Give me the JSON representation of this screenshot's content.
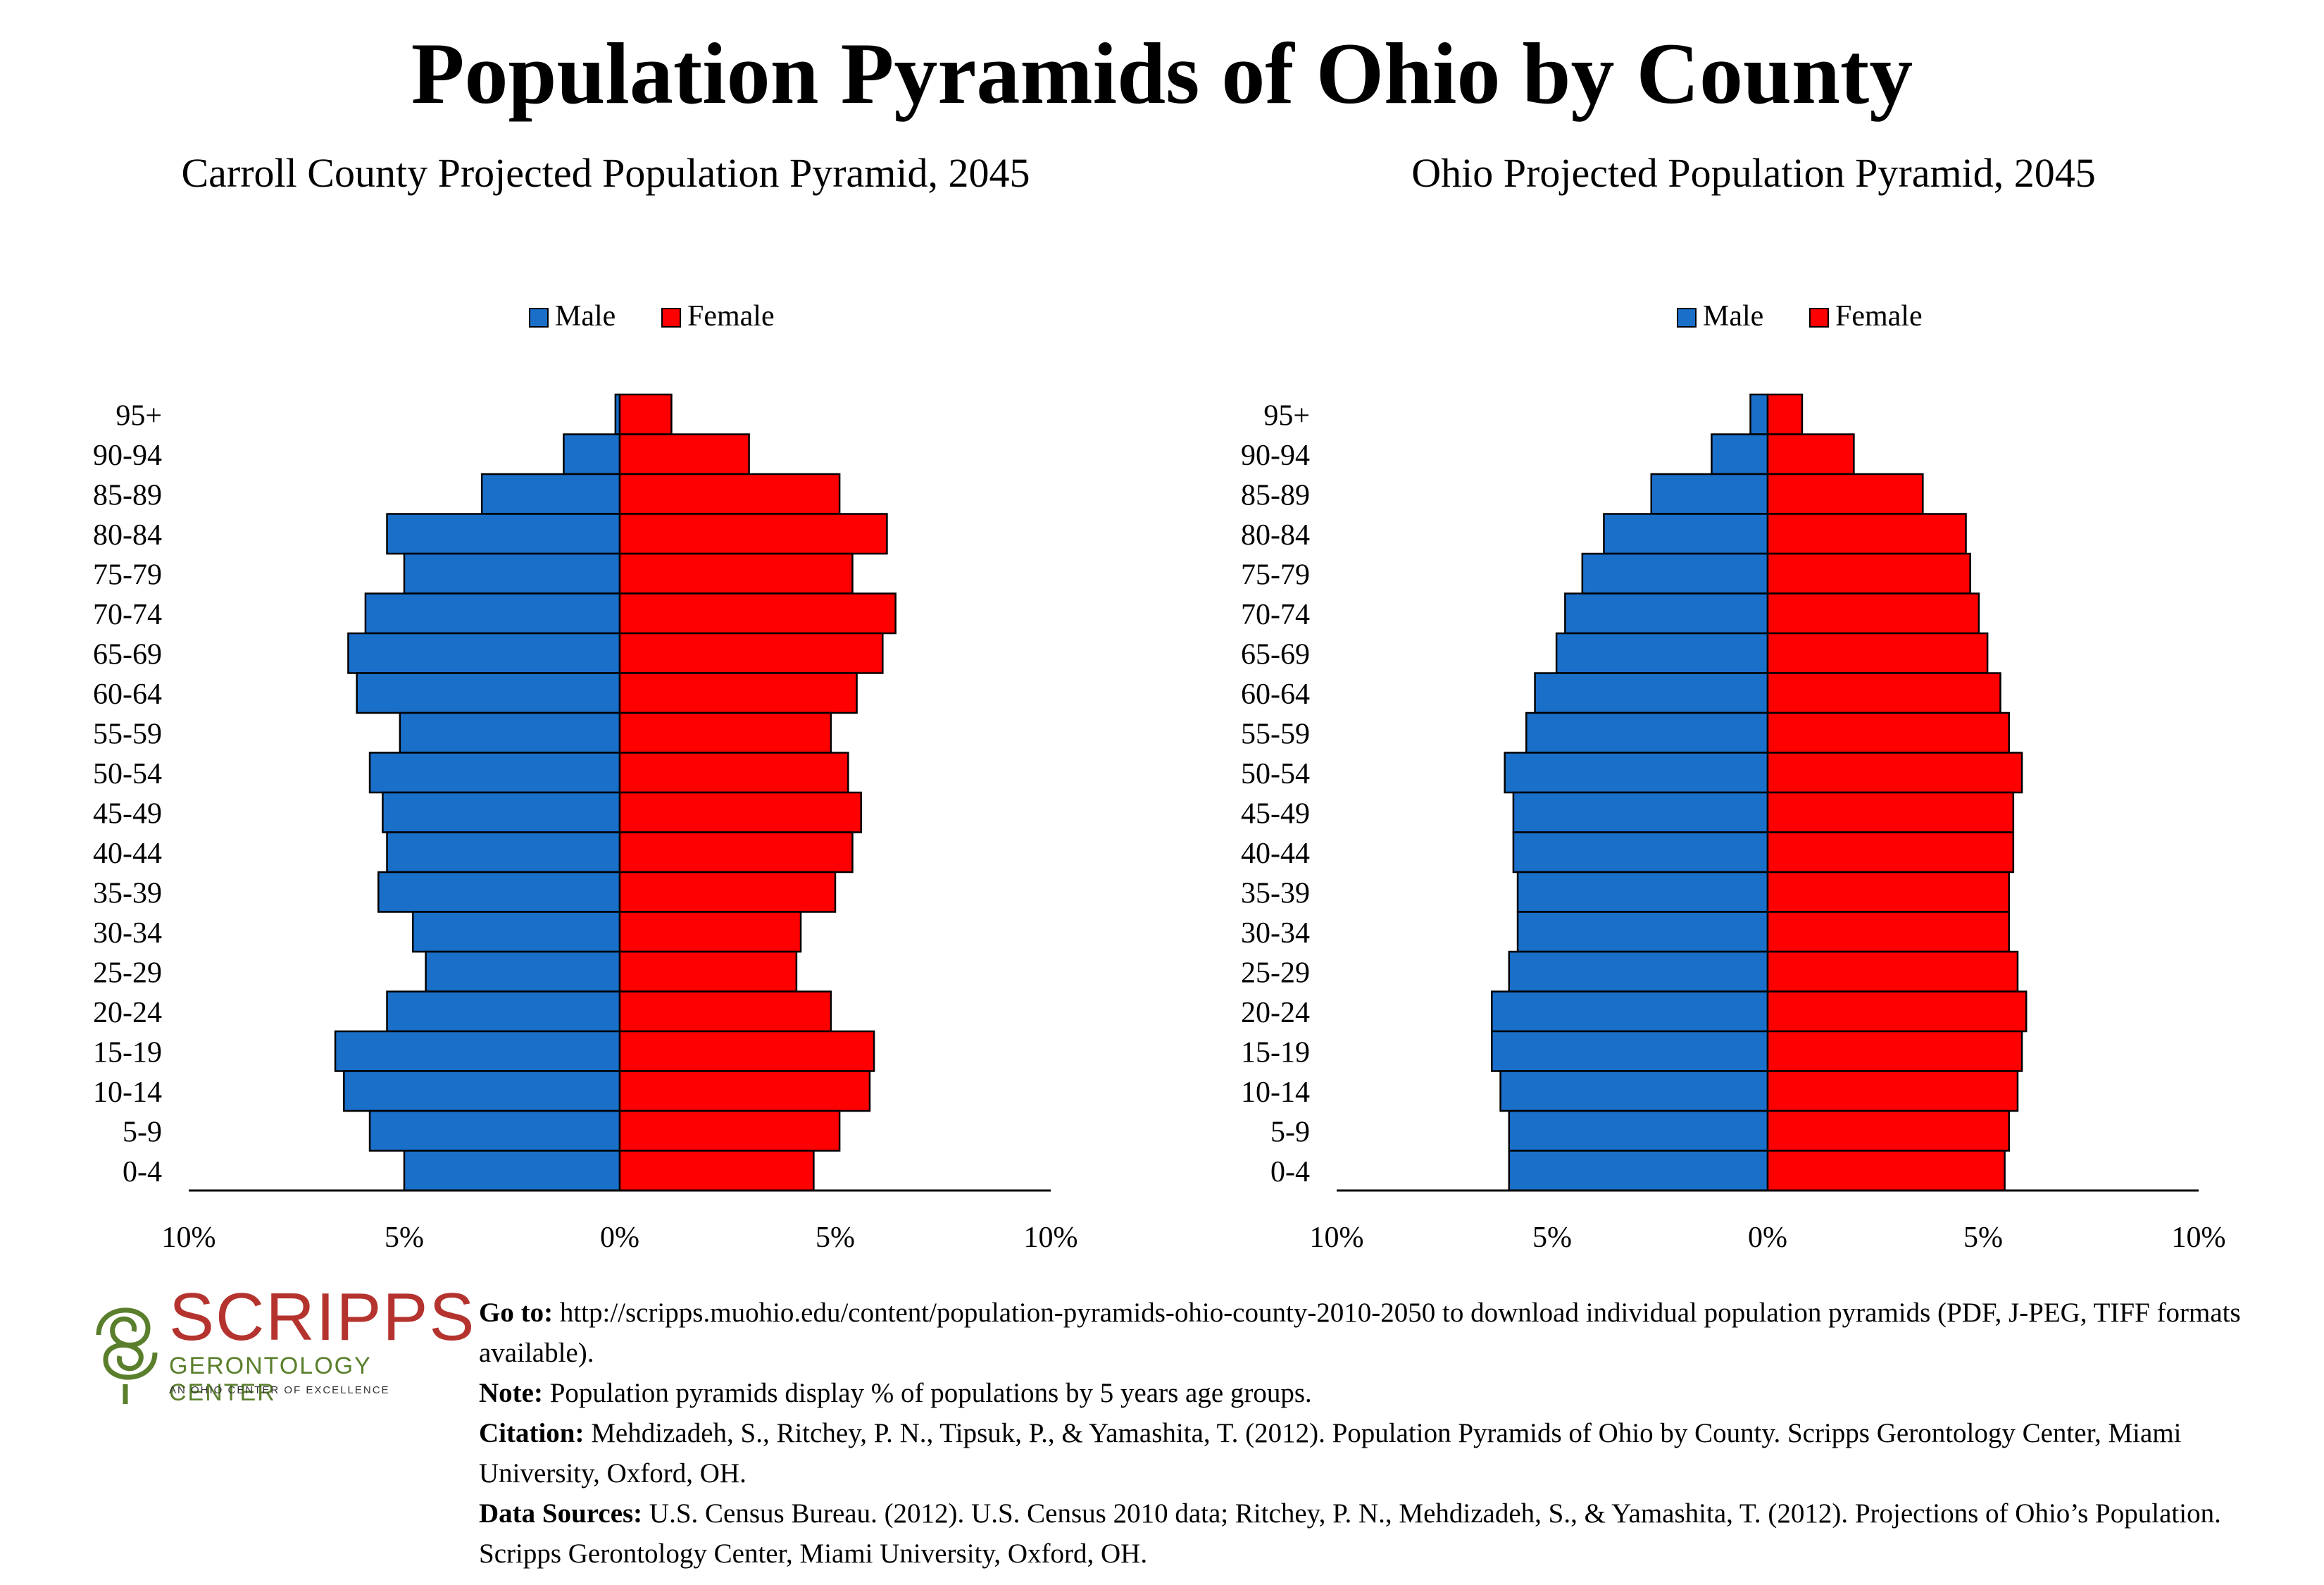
{
  "title": "Population Pyramids of Ohio by County",
  "legend": {
    "male": "Male",
    "female": "Female"
  },
  "colors": {
    "male": "#1a6fc9",
    "female": "#ff0000",
    "outline": "#000000"
  },
  "chart_data": [
    {
      "type": "bar",
      "title": "Carroll County Projected Population Pyramid, 2045",
      "categories": [
        "95+",
        "90-94",
        "85-89",
        "80-84",
        "75-79",
        "70-74",
        "65-69",
        "60-64",
        "55-59",
        "50-54",
        "45-49",
        "40-44",
        "35-39",
        "30-34",
        "25-29",
        "20-24",
        "15-19",
        "10-14",
        "5-9",
        "0-4"
      ],
      "series": [
        {
          "name": "Male",
          "values": [
            0.1,
            1.3,
            3.2,
            5.4,
            5.0,
            5.9,
            6.3,
            6.1,
            5.1,
            5.8,
            5.5,
            5.4,
            5.6,
            4.8,
            4.5,
            5.4,
            6.6,
            6.4,
            5.8,
            5.0
          ]
        },
        {
          "name": "Female",
          "values": [
            1.2,
            3.0,
            5.1,
            6.2,
            5.4,
            6.4,
            6.1,
            5.5,
            4.9,
            5.3,
            5.6,
            5.4,
            5.0,
            4.2,
            4.1,
            4.9,
            5.9,
            5.8,
            5.1,
            4.5
          ]
        }
      ],
      "xticks": [
        "10%",
        "5%",
        "0%",
        "5%",
        "10%"
      ],
      "xlim": [
        -10,
        10
      ]
    },
    {
      "type": "bar",
      "title": "Ohio Projected Population Pyramid, 2045",
      "categories": [
        "95+",
        "90-94",
        "85-89",
        "80-84",
        "75-79",
        "70-74",
        "65-69",
        "60-64",
        "55-59",
        "50-54",
        "45-49",
        "40-44",
        "35-39",
        "30-34",
        "25-29",
        "20-24",
        "15-19",
        "10-14",
        "5-9",
        "0-4"
      ],
      "series": [
        {
          "name": "Male",
          "values": [
            0.4,
            1.3,
            2.7,
            3.8,
            4.3,
            4.7,
            4.9,
            5.4,
            5.6,
            6.1,
            5.9,
            5.9,
            5.8,
            5.8,
            6.0,
            6.4,
            6.4,
            6.2,
            6.0,
            6.0
          ]
        },
        {
          "name": "Female",
          "values": [
            0.8,
            2.0,
            3.6,
            4.6,
            4.7,
            4.9,
            5.1,
            5.4,
            5.6,
            5.9,
            5.7,
            5.7,
            5.6,
            5.6,
            5.8,
            6.0,
            5.9,
            5.8,
            5.6,
            5.5
          ]
        }
      ],
      "xticks": [
        "10%",
        "5%",
        "0%",
        "5%",
        "10%"
      ],
      "xlim": [
        -10,
        10
      ]
    }
  ],
  "logo": {
    "word": "SCRIPPS",
    "subtitle": "GERONTOLOGY CENTER",
    "tagline": "AN OHIO CENTER OF EXCELLENCE"
  },
  "footer": {
    "goto_label": "Go to:",
    "goto_text": "http://scripps.muohio.edu/content/population-pyramids-ohio-county-2010-2050 to download individual population pyramids (PDF, J-PEG, TIFF formats available).",
    "note_label": "Note:",
    "note_text": "Population pyramids display % of populations by 5 years age groups.",
    "citation_label": "Citation:",
    "citation_text": "Mehdizadeh, S., Ritchey, P. N., Tipsuk, P., & Yamashita, T. (2012). Population Pyramids of Ohio by County. Scripps Gerontology Center, Miami University, Oxford, OH.",
    "sources_label": "Data Sources:",
    "sources_text": "U.S. Census Bureau. (2012). U.S. Census 2010 data; Ritchey, P. N., Mehdizadeh, S., & Yamashita, T. (2012). Projections of Ohio’s Population. Scripps Gerontology Center, Miami University, Oxford, OH."
  }
}
